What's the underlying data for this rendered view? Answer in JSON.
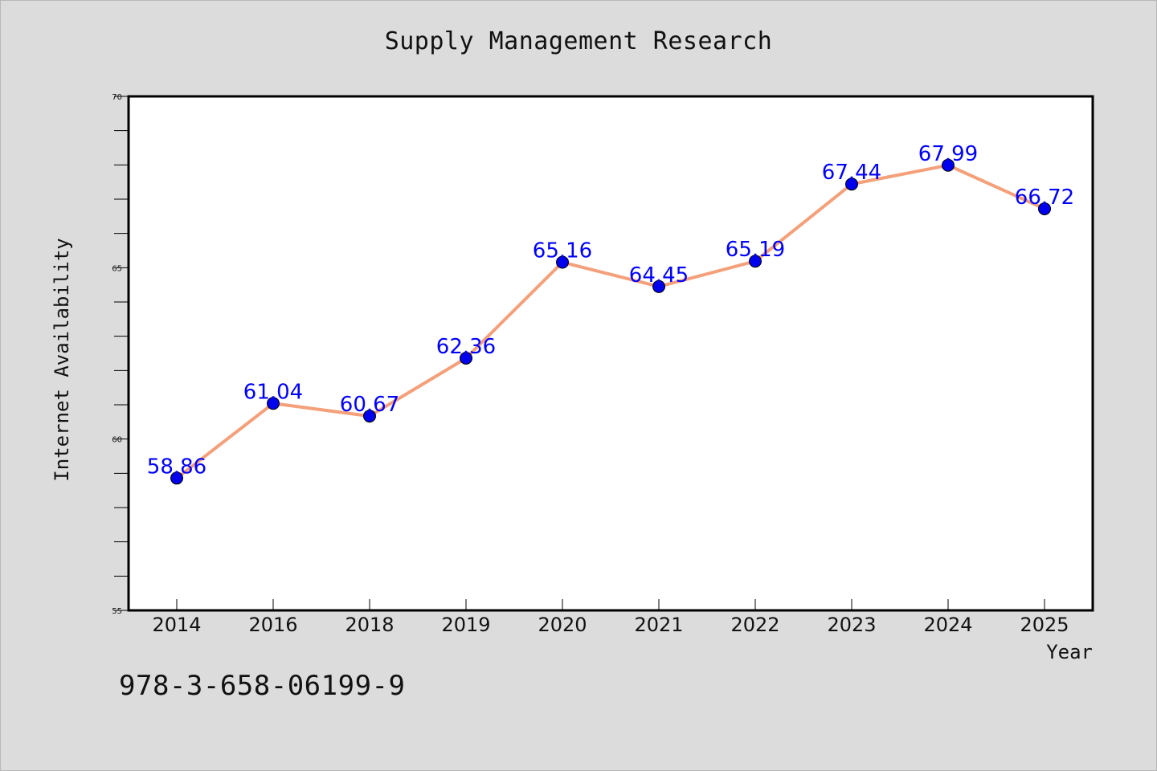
{
  "chart_data": {
    "type": "line",
    "title": "Supply Management Research",
    "xlabel": "Year",
    "ylabel": "Internet Availability",
    "categories": [
      "2014",
      "2016",
      "2018",
      "2019",
      "2020",
      "2021",
      "2022",
      "2023",
      "2024",
      "2025"
    ],
    "series": [
      {
        "values": [
          58.86,
          61.04,
          60.67,
          62.36,
          65.16,
          64.45,
          65.19,
          67.44,
          67.99,
          66.72
        ],
        "line_color": "#f4a07a",
        "marker_color": "#0000ee"
      }
    ],
    "data_labels": [
      "58.86",
      "61.04",
      "60.67",
      "62.36",
      "65.16",
      "64.45",
      "65.19",
      "67.44",
      "67.99",
      "66.72"
    ],
    "data_label_color": "#0000ff",
    "ylim": [
      55,
      70
    ],
    "yticks": [
      55,
      60,
      65,
      70
    ],
    "ytick_labels": [
      "55",
      "60",
      "65",
      "70"
    ],
    "grid": false,
    "legend": "none"
  },
  "footer": {
    "isbn": "978-3-658-06199-9"
  },
  "colors": {
    "background": "#dcdcdc",
    "plot_background": "#ffffff",
    "axis": "#000000"
  }
}
